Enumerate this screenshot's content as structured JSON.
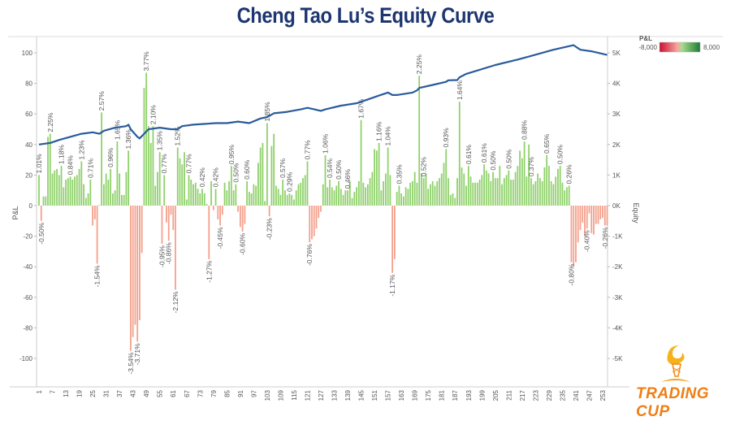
{
  "chart_data": {
    "type": "bar",
    "title": "Cheng Tao Lu’s Equity Curve",
    "xlabel": "",
    "ylabel": "P&L",
    "y2label": "Equity",
    "ylim": [
      -100,
      100
    ],
    "y2lim": [
      -5000,
      5000
    ],
    "yticks": [
      "100",
      "80",
      "60",
      "40",
      "20",
      "0",
      "-20",
      "-40",
      "-60",
      "-80",
      "-100"
    ],
    "y2ticks": [
      "5K",
      "4K",
      "3K",
      "2K",
      "1K",
      "0K",
      "-1K",
      "-2K",
      "-3K",
      "-4K",
      "-5K"
    ],
    "xticks": [
      "1",
      "7",
      "13",
      "19",
      "25",
      "31",
      "37",
      "43",
      "49",
      "55",
      "61",
      "67",
      "73",
      "79",
      "85",
      "91",
      "97",
      "103",
      "109",
      "115",
      "121",
      "127",
      "133",
      "139",
      "145",
      "151",
      "157",
      "163",
      "169",
      "175",
      "181",
      "187",
      "193",
      "199",
      "205",
      "211",
      "217",
      "223",
      "229",
      "235",
      "241",
      "247",
      "253"
    ],
    "legend": {
      "title": "P&L",
      "min_label": "-8,000",
      "max_label": "8,000",
      "placement": "top-right",
      "neg_color": "#c8102e",
      "pos_color": "#1e7b34"
    },
    "colors": {
      "positive": "#8fd16a",
      "negative": "#f4a08c",
      "equity_line": "#2a5b9c",
      "title": "#1d3570"
    },
    "pnl": [
      20,
      -10,
      6,
      6,
      45,
      47,
      21,
      23,
      24,
      20,
      26,
      12,
      17,
      18,
      19,
      17,
      19,
      20,
      24,
      29,
      14,
      5,
      8,
      17,
      -13,
      -9,
      -38,
      0.5,
      61,
      14,
      21,
      17,
      24,
      8,
      10,
      42,
      21,
      7,
      7,
      22,
      36,
      -95,
      -86,
      -78,
      -89,
      -75,
      -31,
      77,
      87,
      52,
      41,
      52,
      13,
      22,
      35,
      -25,
      20,
      -11,
      -23,
      -6,
      -16,
      -55,
      38,
      31,
      27,
      35,
      4,
      20,
      17,
      14,
      15,
      11,
      8,
      11,
      8,
      1,
      -35,
      16,
      -3,
      11,
      -9,
      -13,
      -6,
      15,
      10,
      16,
      26,
      10,
      14,
      -4,
      -14,
      -17,
      -12,
      16,
      9,
      8,
      14,
      13,
      28,
      38,
      41,
      3,
      54,
      -7,
      39,
      47,
      13,
      11,
      7,
      17,
      10,
      7,
      8,
      7,
      4,
      10,
      14,
      15,
      18,
      20,
      29,
      -24,
      -22,
      -20,
      -15,
      -8,
      -4,
      14,
      33,
      12,
      17,
      12,
      10,
      13,
      16,
      11,
      7,
      10,
      10,
      16,
      5,
      9,
      12,
      16,
      56,
      15,
      12,
      14,
      18,
      22,
      37,
      36,
      41,
      10,
      16,
      21,
      38,
      20,
      -44,
      -35,
      9,
      13,
      8,
      6,
      12,
      11,
      15,
      16,
      22,
      15,
      85,
      21,
      18,
      21,
      11,
      14,
      16,
      13,
      16,
      18,
      21,
      28,
      37,
      18,
      7,
      8,
      5,
      18,
      68,
      25,
      21,
      13,
      26,
      19,
      15,
      15,
      15,
      17,
      20,
      27,
      23,
      21,
      16,
      22,
      18,
      18,
      26,
      14,
      18,
      20,
      23,
      17,
      17,
      22,
      26,
      36,
      31,
      42,
      19,
      40,
      18,
      14,
      16,
      21,
      18,
      16,
      25,
      33,
      26,
      16,
      14,
      19,
      24,
      26,
      15,
      10,
      12,
      13,
      -37,
      -40,
      -37,
      -24,
      -16,
      -11,
      -20,
      -15,
      -5,
      -18,
      -19,
      -12,
      -12,
      -9,
      -8,
      -13,
      -13
    ],
    "bar_labels": [
      {
        "bar": 1,
        "text": "1.01%"
      },
      {
        "bar": 2,
        "text": "-0.50%"
      },
      {
        "bar": 6,
        "text": "2.25%"
      },
      {
        "bar": 11,
        "text": "1.18%"
      },
      {
        "bar": 15,
        "text": "0.84%"
      },
      {
        "bar": 20,
        "text": "1.23%"
      },
      {
        "bar": 24,
        "text": "0.71%"
      },
      {
        "bar": 27,
        "text": "-1.54%"
      },
      {
        "bar": 29,
        "text": "2.57%"
      },
      {
        "bar": 33,
        "text": "0.96%"
      },
      {
        "bar": 36,
        "text": "1.65%"
      },
      {
        "bar": 41,
        "text": "1.36%"
      },
      {
        "bar": 42,
        "text": "-3.54%"
      },
      {
        "bar": 45,
        "text": "-3.71%"
      },
      {
        "bar": 49,
        "text": "3.77%"
      },
      {
        "bar": 52,
        "text": "2.10%"
      },
      {
        "bar": 55,
        "text": "1.35%"
      },
      {
        "bar": 56,
        "text": "-0.95%"
      },
      {
        "bar": 57,
        "text": "0.77%"
      },
      {
        "bar": 59,
        "text": "-0.86%"
      },
      {
        "bar": 62,
        "text": "-2.12%"
      },
      {
        "bar": 63,
        "text": "1.52%"
      },
      {
        "bar": 68,
        "text": "0.77%"
      },
      {
        "bar": 74,
        "text": "0.42%"
      },
      {
        "bar": 77,
        "text": "-1.27%"
      },
      {
        "bar": 80,
        "text": "0.42%"
      },
      {
        "bar": 82,
        "text": "-0.45%"
      },
      {
        "bar": 87,
        "text": "0.95%"
      },
      {
        "bar": 89,
        "text": "0.50%"
      },
      {
        "bar": 92,
        "text": "-0.60%"
      },
      {
        "bar": 94,
        "text": "0.60%"
      },
      {
        "bar": 103,
        "text": "1.85%"
      },
      {
        "bar": 104,
        "text": "-0.23%"
      },
      {
        "bar": 110,
        "text": "0.57%"
      },
      {
        "bar": 113,
        "text": "0.29%"
      },
      {
        "bar": 121,
        "text": "0.77%"
      },
      {
        "bar": 122,
        "text": "-0.76%"
      },
      {
        "bar": 129,
        "text": "1.06%"
      },
      {
        "bar": 131,
        "text": "0.54%"
      },
      {
        "bar": 135,
        "text": "0.50%"
      },
      {
        "bar": 139,
        "text": "0.46%"
      },
      {
        "bar": 145,
        "text": "1.67%"
      },
      {
        "bar": 153,
        "text": "1.16%"
      },
      {
        "bar": 157,
        "text": "1.04%"
      },
      {
        "bar": 159,
        "text": "-1.17%"
      },
      {
        "bar": 162,
        "text": "0.35%"
      },
      {
        "bar": 171,
        "text": "2.25%"
      },
      {
        "bar": 173,
        "text": "0.52%"
      },
      {
        "bar": 183,
        "text": "0.93%"
      },
      {
        "bar": 189,
        "text": "1.64%"
      },
      {
        "bar": 193,
        "text": "0.61%"
      },
      {
        "bar": 200,
        "text": "0.61%"
      },
      {
        "bar": 204,
        "text": "0.50%"
      },
      {
        "bar": 211,
        "text": "0.50%"
      },
      {
        "bar": 218,
        "text": "0.88%"
      },
      {
        "bar": 221,
        "text": "0.37%"
      },
      {
        "bar": 228,
        "text": "0.65%"
      },
      {
        "bar": 234,
        "text": "0.50%"
      },
      {
        "bar": 238,
        "text": "0.26%"
      },
      {
        "bar": 239,
        "text": "-0.80%"
      },
      {
        "bar": 246,
        "text": "-0.40%"
      },
      {
        "bar": 254,
        "text": "-0.26%"
      }
    ],
    "equity": [
      [
        1,
        2000
      ],
      [
        6,
        2050
      ],
      [
        10,
        2150
      ],
      [
        20,
        2350
      ],
      [
        25,
        2400
      ],
      [
        28,
        2350
      ],
      [
        30,
        2450
      ],
      [
        35,
        2550
      ],
      [
        40,
        2600
      ],
      [
        41,
        2650
      ],
      [
        42,
        2500
      ],
      [
        45,
        2250
      ],
      [
        46,
        2200
      ],
      [
        48,
        2350
      ],
      [
        50,
        2500
      ],
      [
        55,
        2550
      ],
      [
        60,
        2500
      ],
      [
        63,
        2500
      ],
      [
        65,
        2600
      ],
      [
        70,
        2650
      ],
      [
        80,
        2700
      ],
      [
        85,
        2700
      ],
      [
        90,
        2750
      ],
      [
        95,
        2700
      ],
      [
        100,
        2850
      ],
      [
        103,
        2900
      ],
      [
        106,
        3020
      ],
      [
        112,
        3070
      ],
      [
        118,
        3150
      ],
      [
        121,
        3200
      ],
      [
        123,
        3170
      ],
      [
        127,
        3100
      ],
      [
        129,
        3150
      ],
      [
        136,
        3270
      ],
      [
        143,
        3350
      ],
      [
        145,
        3400
      ],
      [
        149,
        3500
      ],
      [
        153,
        3600
      ],
      [
        157,
        3700
      ],
      [
        159,
        3620
      ],
      [
        161,
        3620
      ],
      [
        168,
        3700
      ],
      [
        170,
        3770
      ],
      [
        171,
        3850
      ],
      [
        177,
        3950
      ],
      [
        183,
        4050
      ],
      [
        184,
        4100
      ],
      [
        188,
        4110
      ],
      [
        189,
        4200
      ],
      [
        192,
        4310
      ],
      [
        205,
        4600
      ],
      [
        215,
        4780
      ],
      [
        221,
        4900
      ],
      [
        231,
        5100
      ],
      [
        240,
        5250
      ],
      [
        243,
        5100
      ],
      [
        248,
        5050
      ],
      [
        255,
        4930
      ]
    ]
  },
  "logo": {
    "text": "TRADING CUP"
  }
}
